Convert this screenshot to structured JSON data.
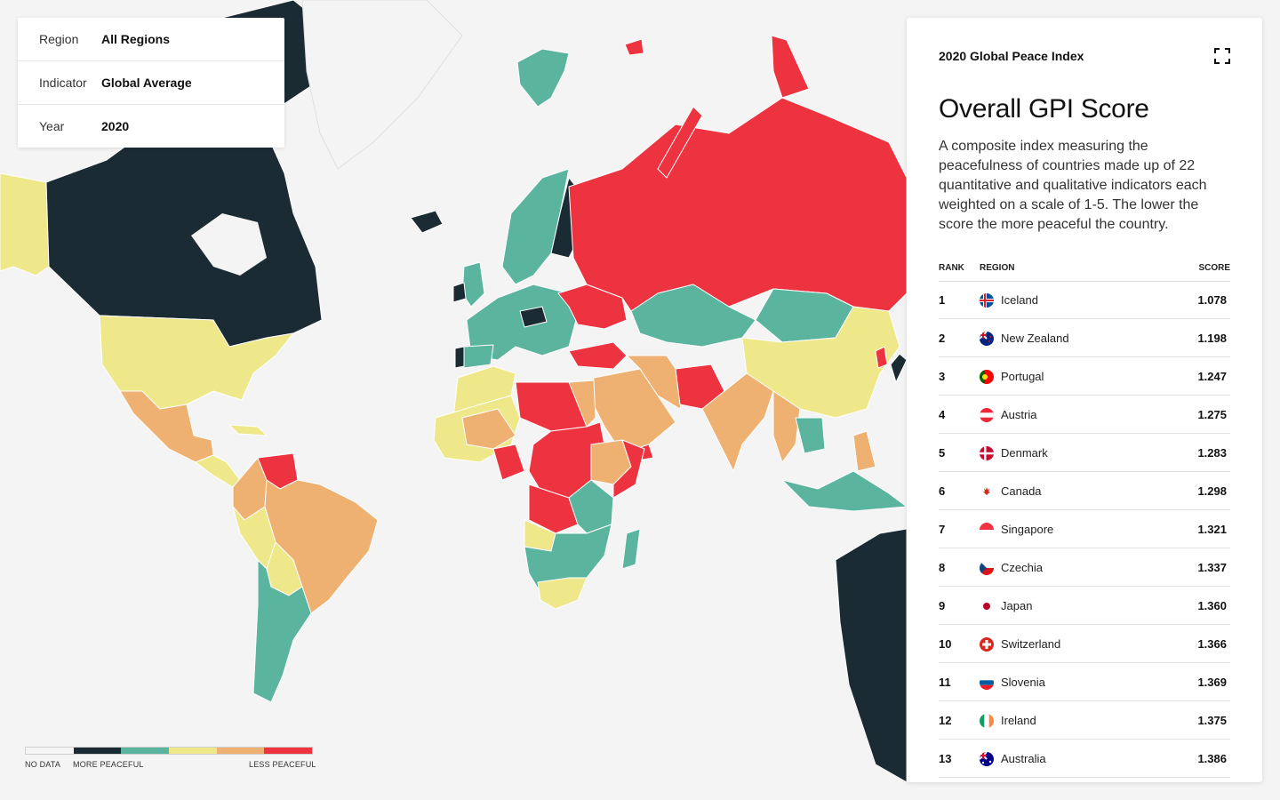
{
  "filters": [
    {
      "label": "Region",
      "value": "All Regions"
    },
    {
      "label": "Indicator",
      "value": "Global Average"
    },
    {
      "label": "Year",
      "value": "2020"
    }
  ],
  "legend": {
    "colors": [
      "#f5f5f5",
      "#1b2b33",
      "#5bb59e",
      "#eee88a",
      "#eeb172",
      "#ee3340"
    ],
    "labels": {
      "no_data": "NO DATA",
      "more": "MORE PEACEFUL",
      "less": "LESS PEACEFUL"
    }
  },
  "map": {
    "ocean": "#f4f4f4"
  },
  "panel": {
    "header": "2020 Global Peace Index",
    "title": "Overall GPI Score",
    "description": "A composite index measuring the peacefulness of countries made up of 22 quantitative and qualitative indicators each weighted on a scale of 1-5. The lower the score the more peaceful the country.",
    "columns": {
      "rank": "RANK",
      "region": "REGION",
      "score": "SCORE"
    },
    "rows": [
      {
        "rank": "1",
        "country": "Iceland",
        "score": "1.078",
        "flag": "iceland-flag-icon"
      },
      {
        "rank": "2",
        "country": "New Zealand",
        "score": "1.198",
        "flag": "new-zealand-flag-icon"
      },
      {
        "rank": "3",
        "country": "Portugal",
        "score": "1.247",
        "flag": "portugal-flag-icon"
      },
      {
        "rank": "4",
        "country": "Austria",
        "score": "1.275",
        "flag": "austria-flag-icon"
      },
      {
        "rank": "5",
        "country": "Denmark",
        "score": "1.283",
        "flag": "denmark-flag-icon"
      },
      {
        "rank": "6",
        "country": "Canada",
        "score": "1.298",
        "flag": "canada-flag-icon"
      },
      {
        "rank": "7",
        "country": "Singapore",
        "score": "1.321",
        "flag": "singapore-flag-icon"
      },
      {
        "rank": "8",
        "country": "Czechia",
        "score": "1.337",
        "flag": "czechia-flag-icon"
      },
      {
        "rank": "9",
        "country": "Japan",
        "score": "1.360",
        "flag": "japan-flag-icon"
      },
      {
        "rank": "10",
        "country": "Switzerland",
        "score": "1.366",
        "flag": "switzerland-flag-icon"
      },
      {
        "rank": "11",
        "country": "Slovenia",
        "score": "1.369",
        "flag": "slovenia-flag-icon"
      },
      {
        "rank": "12",
        "country": "Ireland",
        "score": "1.375",
        "flag": "ireland-flag-icon"
      },
      {
        "rank": "13",
        "country": "Australia",
        "score": "1.386",
        "flag": "australia-flag-icon"
      }
    ]
  }
}
